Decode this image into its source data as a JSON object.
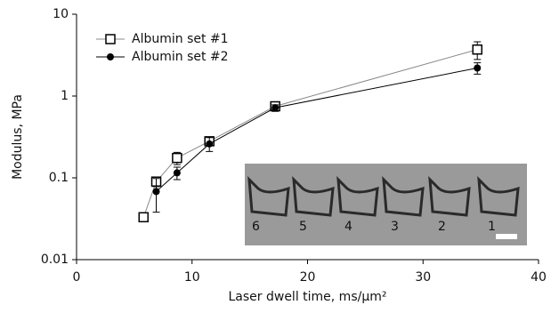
{
  "chart_data": {
    "type": "line",
    "xlabel": "Laser dwell time, ms/µm²",
    "ylabel": "Modulus, MPa",
    "xlim": [
      0,
      40
    ],
    "xticks": [
      0,
      10,
      20,
      30,
      40
    ],
    "ylim": [
      0.01,
      10
    ],
    "yticks": [
      0.01,
      0.1,
      1,
      10
    ],
    "ylog": true,
    "legend": "upper left",
    "series": [
      {
        "name": "Albumin set #1",
        "color": "#888888",
        "marker": "square",
        "x": [
          5.8,
          6.9,
          8.7,
          11.5,
          17.2,
          34.7
        ],
        "values": [
          0.033,
          0.09,
          0.175,
          0.28,
          0.75,
          3.7
        ],
        "errors": [
          0.003,
          0.012,
          0.03,
          0.03,
          0.1,
          0.9
        ]
      },
      {
        "name": "Albumin set #2",
        "color": "#000000",
        "marker": "circle",
        "x": [
          6.9,
          8.7,
          11.5,
          17.2,
          34.7
        ],
        "values": [
          0.068,
          0.115,
          0.26,
          0.72,
          2.2
        ],
        "errors": [
          0.03,
          0.02,
          0.05,
          0.06,
          0.35
        ]
      }
    ],
    "inset": {
      "labels": [
        "6",
        "5",
        "4",
        "3",
        "2",
        "1"
      ]
    }
  }
}
